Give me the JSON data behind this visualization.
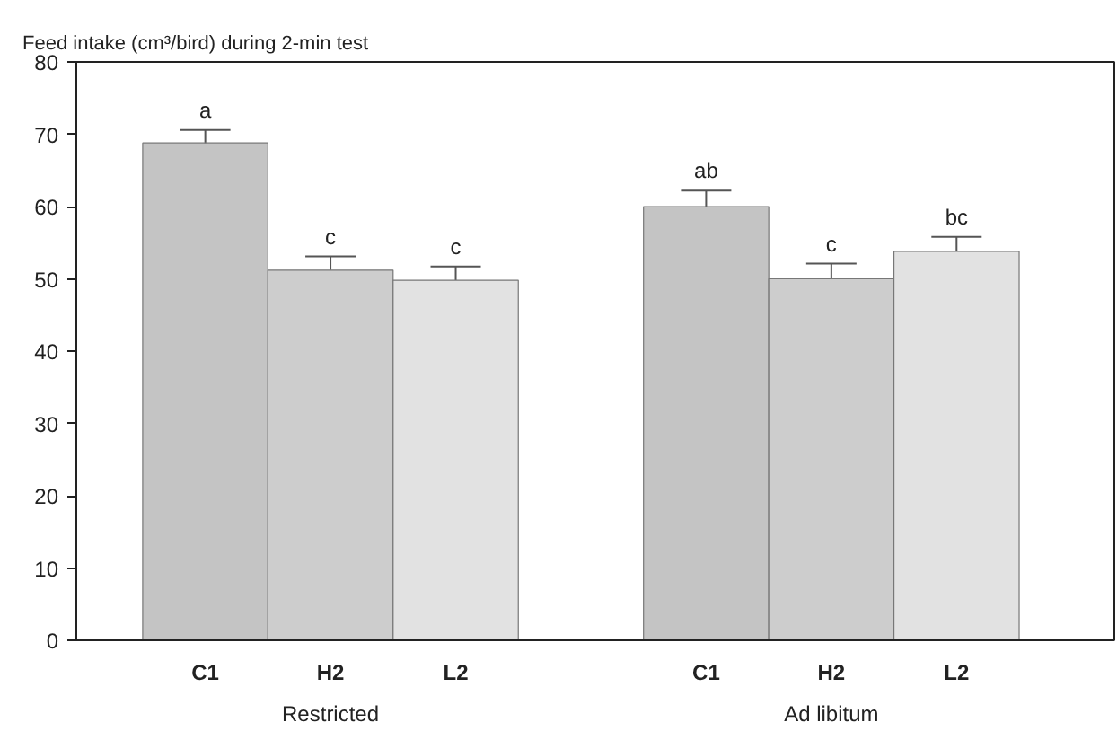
{
  "chart_data": {
    "type": "bar",
    "title": "Feed intake (cm³/bird) during 2-min test",
    "categories": [
      "C1",
      "H2",
      "L2",
      "C1",
      "H2",
      "L2"
    ],
    "values": [
      68.8,
      51.2,
      49.8,
      60.0,
      50.0,
      53.8
    ],
    "errors": [
      1.8,
      1.9,
      1.9,
      2.2,
      2.1,
      2.0
    ],
    "value_labels": [
      "a",
      "c",
      "c",
      "ab",
      "c",
      "bc"
    ],
    "colors": [
      "#c4c4c4",
      "#cdcdcd",
      "#e2e2e2",
      "#c4c4c4",
      "#cdcdcd",
      "#e2e2e2"
    ],
    "annotations": [
      "Restricted",
      "Ad libitum"
    ],
    "ylim": [
      0,
      80
    ],
    "yticks": [
      0,
      10,
      20,
      30,
      40,
      50,
      60,
      70,
      80
    ],
    "grid": false
  }
}
